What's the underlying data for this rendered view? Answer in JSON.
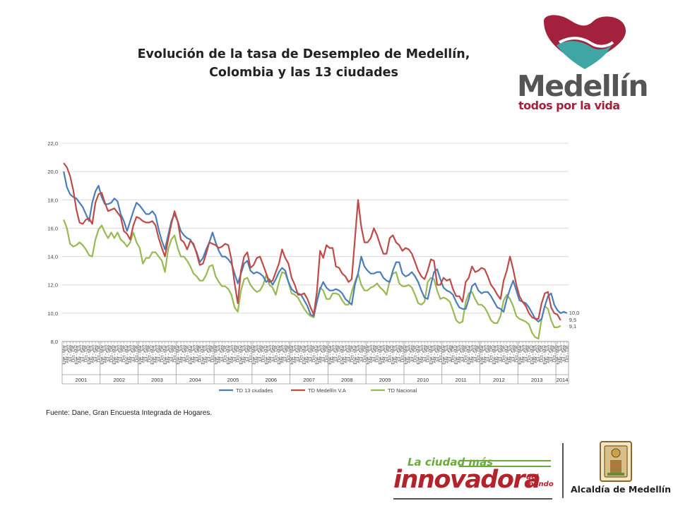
{
  "header": {
    "title_line1": "Evolución de la tasa de Desempleo de Medellín,",
    "title_line2": "Colombia y las 13 ciudades"
  },
  "logo": {
    "word": "Medellín",
    "tagline": "todos por la vida"
  },
  "source": "Fuente: Dane, Gran Encuesta Integrada de Hogares.",
  "footer": {
    "slogan_small": "La ciudad más",
    "slogan_big": "innovadora",
    "slogan_tiny_1": "del",
    "slogan_tiny_2": "mundo",
    "institution": "Alcaldía de Medellín"
  },
  "colors": {
    "blue": "#4a7ebb",
    "red": "#be4b48",
    "green": "#98b954",
    "logo_red": "#a3213d",
    "logo_teal": "#3fa5a5",
    "slogan_red": "#b3232c",
    "slogan_green": "#6aab3a"
  },
  "chart_data": {
    "type": "line",
    "title": "",
    "xlabel": "",
    "ylabel": "",
    "ylim": [
      8,
      22
    ],
    "y_ticks": [
      "8,0",
      "10,0",
      "12,0",
      "14,0",
      "16,0",
      "18,0",
      "20,0",
      "22,0"
    ],
    "y_tick_values": [
      8,
      10,
      12,
      14,
      16,
      18,
      20,
      22
    ],
    "grid": true,
    "legend_position": "bottom",
    "period_labels": [
      "Ene - Mar",
      "Abr - Jun",
      "Jul - Sep",
      "Oct - Dic"
    ],
    "years": [
      "2001",
      "2002",
      "2003",
      "2004",
      "2005",
      "2006",
      "2007",
      "2008",
      "2009",
      "2010",
      "2011",
      "2012",
      "2013",
      "2014"
    ],
    "end_labels": [
      "10,0",
      "9,5",
      "9,1"
    ],
    "series": [
      {
        "name": "TD 13 ciudades",
        "color": "#4a7ebb",
        "values": [
          20.0,
          18.9,
          18.4,
          18.2,
          18.1,
          17.8,
          17.5,
          17.0,
          16.5,
          17.8,
          18.6,
          19.0,
          18.2,
          17.7,
          17.7,
          17.8,
          18.1,
          17.9,
          17.0,
          16.5,
          15.8,
          16.5,
          17.2,
          17.8,
          17.6,
          17.3,
          17.0,
          17.0,
          17.2,
          16.9,
          15.9,
          15.1,
          14.5,
          15.5,
          16.5,
          17.0,
          16.5,
          15.8,
          15.5,
          15.3,
          15.2,
          14.8,
          14.3,
          13.6,
          13.9,
          14.5,
          15.0,
          15.7,
          15.0,
          14.4,
          14.0,
          14.0,
          13.8,
          13.5,
          12.8,
          12.1,
          12.8,
          13.5,
          13.7,
          13.0,
          12.8,
          12.9,
          12.8,
          12.6,
          12.2,
          12.4,
          12.0,
          12.4,
          12.9,
          13.2,
          13.0,
          12.2,
          11.7,
          11.5,
          11.4,
          11.3,
          10.9,
          10.5,
          9.9,
          9.8,
          10.8,
          11.7,
          12.2,
          11.8,
          11.6,
          11.6,
          11.7,
          11.6,
          11.4,
          11.0,
          10.8,
          10.6,
          12.0,
          12.8,
          14.0,
          13.3,
          13.0,
          12.8,
          12.8,
          12.9,
          12.9,
          12.5,
          12.3,
          12.2,
          13.0,
          13.6,
          13.6,
          12.8,
          12.6,
          12.7,
          12.9,
          12.6,
          12.2,
          11.6,
          11.1,
          11.0,
          12.0,
          12.9,
          13.1,
          12.4,
          11.8,
          11.6,
          11.5,
          11.3,
          10.8,
          10.4,
          10.3,
          10.3,
          11.0,
          11.9,
          12.1,
          11.6,
          11.4,
          11.5,
          11.5,
          11.2,
          10.8,
          10.4,
          10.3,
          10.1,
          11.0,
          11.7,
          12.3,
          11.6,
          10.9,
          10.8,
          10.7,
          10.4,
          10.0,
          9.6,
          9.4,
          9.6,
          10.5,
          11.2,
          11.4,
          10.6,
          10.2,
          10.0,
          10.1,
          10.0
        ]
      },
      {
        "name": "TD Medellín V.A",
        "color": "#be4b48",
        "values": [
          20.6,
          20.3,
          19.7,
          18.7,
          17.3,
          16.4,
          16.3,
          16.6,
          16.7,
          16.3,
          17.8,
          18.4,
          18.5,
          17.8,
          17.2,
          17.3,
          17.4,
          17.1,
          16.8,
          15.8,
          15.6,
          15.2,
          16.2,
          16.8,
          16.7,
          16.5,
          16.4,
          16.4,
          16.5,
          16.2,
          15.3,
          14.6,
          14.0,
          15.2,
          16.3,
          17.2,
          16.5,
          15.2,
          15.0,
          14.5,
          15.1,
          14.9,
          14.2,
          13.4,
          13.5,
          14.2,
          15.0,
          14.9,
          14.8,
          14.6,
          14.7,
          14.9,
          14.8,
          13.8,
          12.1,
          10.7,
          13.0,
          14.0,
          14.3,
          13.2,
          13.4,
          13.9,
          14.0,
          13.4,
          12.8,
          12.2,
          12.3,
          12.9,
          13.5,
          14.5,
          13.9,
          13.5,
          12.5,
          12.0,
          11.3,
          11.3,
          11.4,
          11.0,
          10.4,
          9.9,
          11.5,
          14.4,
          13.9,
          14.8,
          14.6,
          14.6,
          13.3,
          13.2,
          12.8,
          12.6,
          12.2,
          12.4,
          15.2,
          18.0,
          16.1,
          15.0,
          15.0,
          15.3,
          16.0,
          15.5,
          14.8,
          14.2,
          14.2,
          15.3,
          15.5,
          15.0,
          14.8,
          14.4,
          14.6,
          14.5,
          14.2,
          13.6,
          13.0,
          12.6,
          12.4,
          13.0,
          13.8,
          13.7,
          12.0,
          12.0,
          12.5,
          12.3,
          12.4,
          11.7,
          11.2,
          11.2,
          10.8,
          12.2,
          12.5,
          13.3,
          12.9,
          13.0,
          13.2,
          13.1,
          12.6,
          12.0,
          11.7,
          11.3,
          11.0,
          12.3,
          13.0,
          14.0,
          13.1,
          12.0,
          11.2,
          10.8,
          10.5,
          10.0,
          9.7,
          9.6,
          9.6,
          10.7,
          11.4,
          11.5,
          10.4,
          10.0,
          9.9,
          9.5
        ]
      },
      {
        "name": "TD Nacional",
        "color": "#98b954",
        "values": [
          16.6,
          16.0,
          14.9,
          14.7,
          14.8,
          15.0,
          14.8,
          14.5,
          14.1,
          14.0,
          15.2,
          15.9,
          16.2,
          15.7,
          15.3,
          15.7,
          15.3,
          15.7,
          15.2,
          15.0,
          14.7,
          15.0,
          15.7,
          15.0,
          14.6,
          13.5,
          13.9,
          13.9,
          14.3,
          14.3,
          14.0,
          13.7,
          12.9,
          14.5,
          15.2,
          15.5,
          14.6,
          14.0,
          14.0,
          13.7,
          13.3,
          12.8,
          12.6,
          12.3,
          12.3,
          12.7,
          13.3,
          13.4,
          12.6,
          12.2,
          11.9,
          11.9,
          11.7,
          11.3,
          10.4,
          10.1,
          11.6,
          12.4,
          12.5,
          12.0,
          11.7,
          11.5,
          11.6,
          12.0,
          12.7,
          12.0,
          11.8,
          11.3,
          12.2,
          12.9,
          12.8,
          12.2,
          11.4,
          11.3,
          11.1,
          10.7,
          10.3,
          10.0,
          9.8,
          9.7,
          10.9,
          11.8,
          11.6,
          11.0,
          11.0,
          11.4,
          11.4,
          11.3,
          10.9,
          10.6,
          10.6,
          11.5,
          12.2,
          12.8,
          12.0,
          11.6,
          11.6,
          11.8,
          11.9,
          12.1,
          11.8,
          11.6,
          11.3,
          12.3,
          12.8,
          12.9,
          12.1,
          11.9,
          11.9,
          12.0,
          11.8,
          11.3,
          10.7,
          10.6,
          10.8,
          12.2,
          12.5,
          12.4,
          11.6,
          11.0,
          11.1,
          11.0,
          10.8,
          10.2,
          9.5,
          9.3,
          9.4,
          10.8,
          11.4,
          11.5,
          11.0,
          10.6,
          10.6,
          10.4,
          10.0,
          9.5,
          9.3,
          9.3,
          9.8,
          10.9,
          11.3,
          11.0,
          10.5,
          9.8,
          9.6,
          9.5,
          9.4,
          9.2,
          8.6,
          8.3,
          8.2,
          9.6,
          10.5,
          10.3,
          9.5,
          9.0,
          9.0,
          9.1
        ]
      }
    ]
  }
}
